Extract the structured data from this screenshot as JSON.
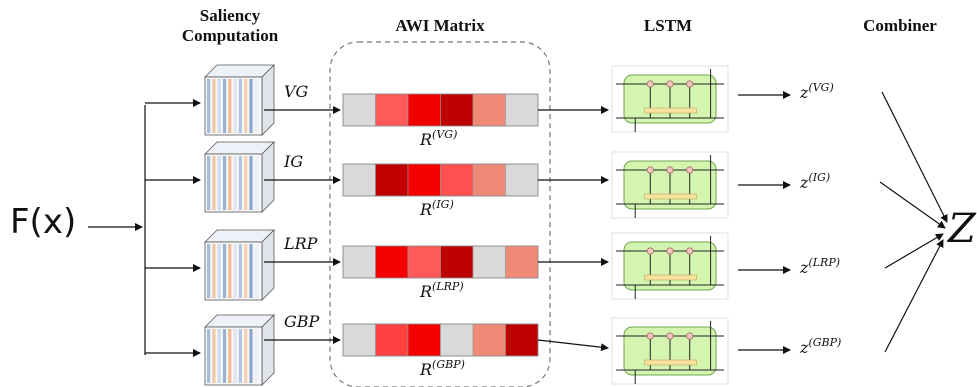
{
  "headers": {
    "saliency": "Saliency\nComputation",
    "awi": "AWI Matrix",
    "lstm": "LSTM",
    "combiner": "Combiner"
  },
  "input_label": "F(x)",
  "output_label": "Z",
  "methods": [
    {
      "name": "VG",
      "r_base": "R",
      "r_sup": "(VG)",
      "z_base": "z",
      "z_sup": "(VG)",
      "cells": [
        "#d9d9d9",
        "#ff5a5a",
        "#f20000",
        "#bd0000",
        "#ee8a76",
        "#d9d9d9"
      ]
    },
    {
      "name": "IG",
      "r_base": "R",
      "r_sup": "(IG)",
      "z_base": "z",
      "z_sup": "(IG)",
      "cells": [
        "#d9d9d9",
        "#c10000",
        "#f40000",
        "#ff5050",
        "#ee8a76",
        "#d9d9d9"
      ]
    },
    {
      "name": "LRP",
      "r_base": "R",
      "r_sup": "(LRP)",
      "z_base": "z",
      "z_sup": "(LRP)",
      "cells": [
        "#d9d9d9",
        "#f40000",
        "#ff5a5a",
        "#bd0000",
        "#d9d9d9",
        "#ee8a76"
      ]
    },
    {
      "name": "GBP",
      "r_base": "R",
      "r_sup": "(GBP)",
      "z_base": "z",
      "z_sup": "(GBP)",
      "cells": [
        "#d9d9d9",
        "#ff4040",
        "#f40000",
        "#d9d9d9",
        "#ee8a76",
        "#bd0000"
      ]
    }
  ]
}
